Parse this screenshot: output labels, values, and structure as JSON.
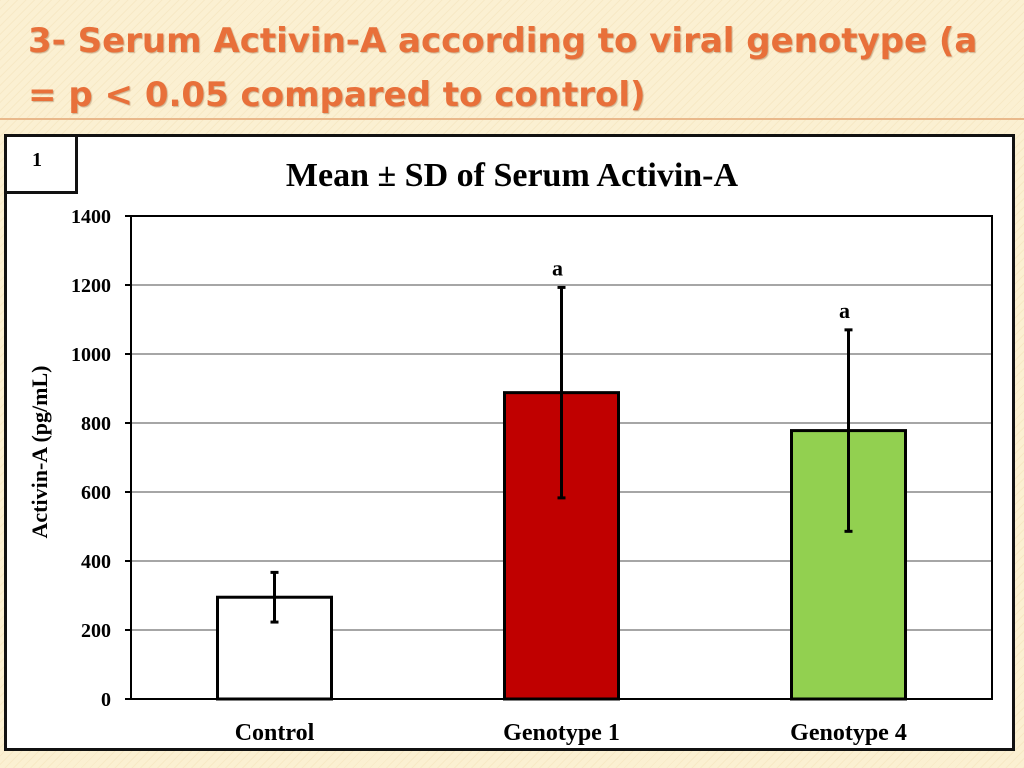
{
  "slide": {
    "title": "3- Serum Activin-A according to viral genotype (a = p < 0.05 compared to control)"
  },
  "chart_badge": "1",
  "chart_data": {
    "type": "bar",
    "title": "Mean ± SD of Serum Activin-A",
    "ylabel": "Activin-A (pg/mL)",
    "xlabel": "",
    "ylim": [
      0,
      1400
    ],
    "yticks": [
      0,
      200,
      400,
      600,
      800,
      1000,
      1200,
      1400
    ],
    "grid": true,
    "categories": [
      "Control",
      "Genotype 1",
      "Genotype 4"
    ],
    "values": [
      295,
      888,
      778
    ],
    "sd": [
      72,
      305,
      292
    ],
    "annotations": [
      "",
      "a",
      "a"
    ],
    "colors": [
      "#ffffff",
      "#c00000",
      "#92d050"
    ]
  }
}
